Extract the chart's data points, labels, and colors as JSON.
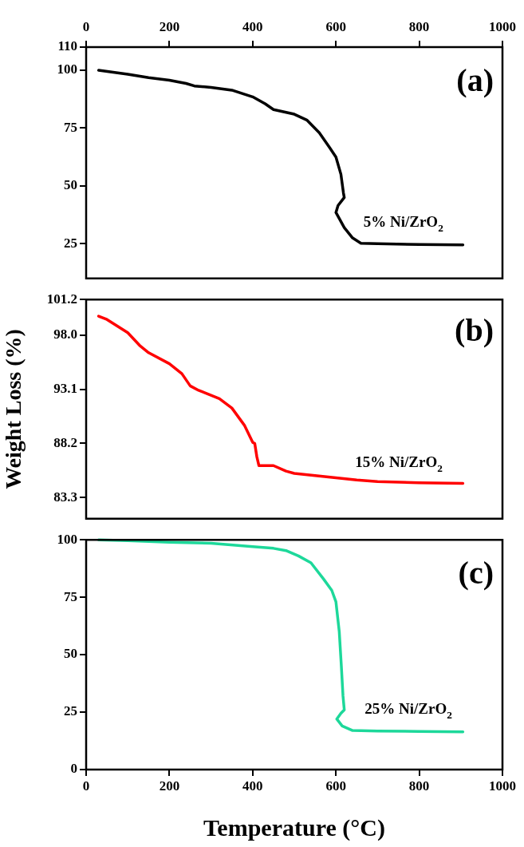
{
  "chart_data": [
    {
      "type": "line",
      "annotations": [
        "(a)"
      ],
      "xlim": [
        0,
        1000
      ],
      "x2lim": [
        0,
        1000
      ],
      "x2ticks": [
        0,
        200,
        400,
        600,
        800,
        1000
      ],
      "ylim": [
        10,
        110
      ],
      "yticks": [
        25,
        50,
        75,
        100,
        110
      ],
      "tick_labels": "y",
      "series": [
        {
          "name": "5% Ni/ZrO$_{2}$",
          "color": "#000000",
          "x": [
            30,
            100,
            150,
            200,
            240,
            260,
            300,
            350,
            400,
            430,
            450,
            500,
            530,
            560,
            585,
            600,
            612,
            618,
            620,
            605,
            600,
            620,
            640,
            660,
            700,
            800,
            905
          ],
          "values": [
            100,
            98.3,
            96.8,
            95.7,
            94.3,
            93.2,
            92.6,
            91.4,
            88.5,
            85.5,
            83,
            81,
            78.5,
            73,
            66.5,
            62.5,
            55,
            47,
            45,
            41.5,
            38.5,
            32,
            27.5,
            25.2,
            25,
            24.7,
            24.5
          ]
        }
      ]
    },
    {
      "type": "line",
      "annotations": [
        "(b)"
      ],
      "ylabel": "Weight Loss (%)",
      "xlim": [
        0,
        1000
      ],
      "ylim": [
        81.4,
        101.2
      ],
      "yticks": [
        83.3,
        88.2,
        93.1,
        {
          "value": 98.0,
          "label": "98.0"
        },
        101.2
      ],
      "tick_labels": "y",
      "series": [
        {
          "name": "15% Ni/ZrO$_{2}$",
          "color": "#ff0000",
          "x": [
            30,
            50,
            100,
            130,
            150,
            200,
            230,
            250,
            270,
            320,
            350,
            380,
            400,
            405,
            410,
            415,
            450,
            480,
            500,
            550,
            600,
            650,
            700,
            800,
            905
          ],
          "values": [
            99.7,
            99.4,
            98.2,
            97.0,
            96.4,
            95.4,
            94.5,
            93.4,
            93.0,
            92.25,
            91.4,
            89.85,
            88.3,
            88.2,
            87.0,
            86.2,
            86.2,
            85.7,
            85.5,
            85.3,
            85.1,
            84.9,
            84.75,
            84.65,
            84.6
          ]
        }
      ]
    },
    {
      "type": "line",
      "annotations": [
        "(c)"
      ],
      "xlabel": "Temperature (°C)",
      "xlim": [
        0,
        1000
      ],
      "xticks": [
        0,
        200,
        400,
        600,
        800,
        1000
      ],
      "ylim": [
        0,
        100
      ],
      "yticks": [
        0,
        25,
        50,
        75,
        100
      ],
      "series": [
        {
          "name": "25% Ni/ZrO$_{2}$",
          "color": "#1dd89a",
          "x": [
            30,
            100,
            200,
            300,
            400,
            450,
            480,
            510,
            540,
            570,
            590,
            600,
            608,
            613,
            617,
            620,
            612,
            602,
            615,
            640,
            700,
            800,
            905
          ],
          "values": [
            100,
            99.6,
            98.9,
            98.5,
            97.0,
            96.3,
            95.3,
            93,
            90,
            83,
            78,
            73,
            60,
            45,
            32,
            26,
            24.5,
            22,
            19,
            17,
            16.8,
            16.6,
            16.4
          ]
        }
      ]
    }
  ]
}
